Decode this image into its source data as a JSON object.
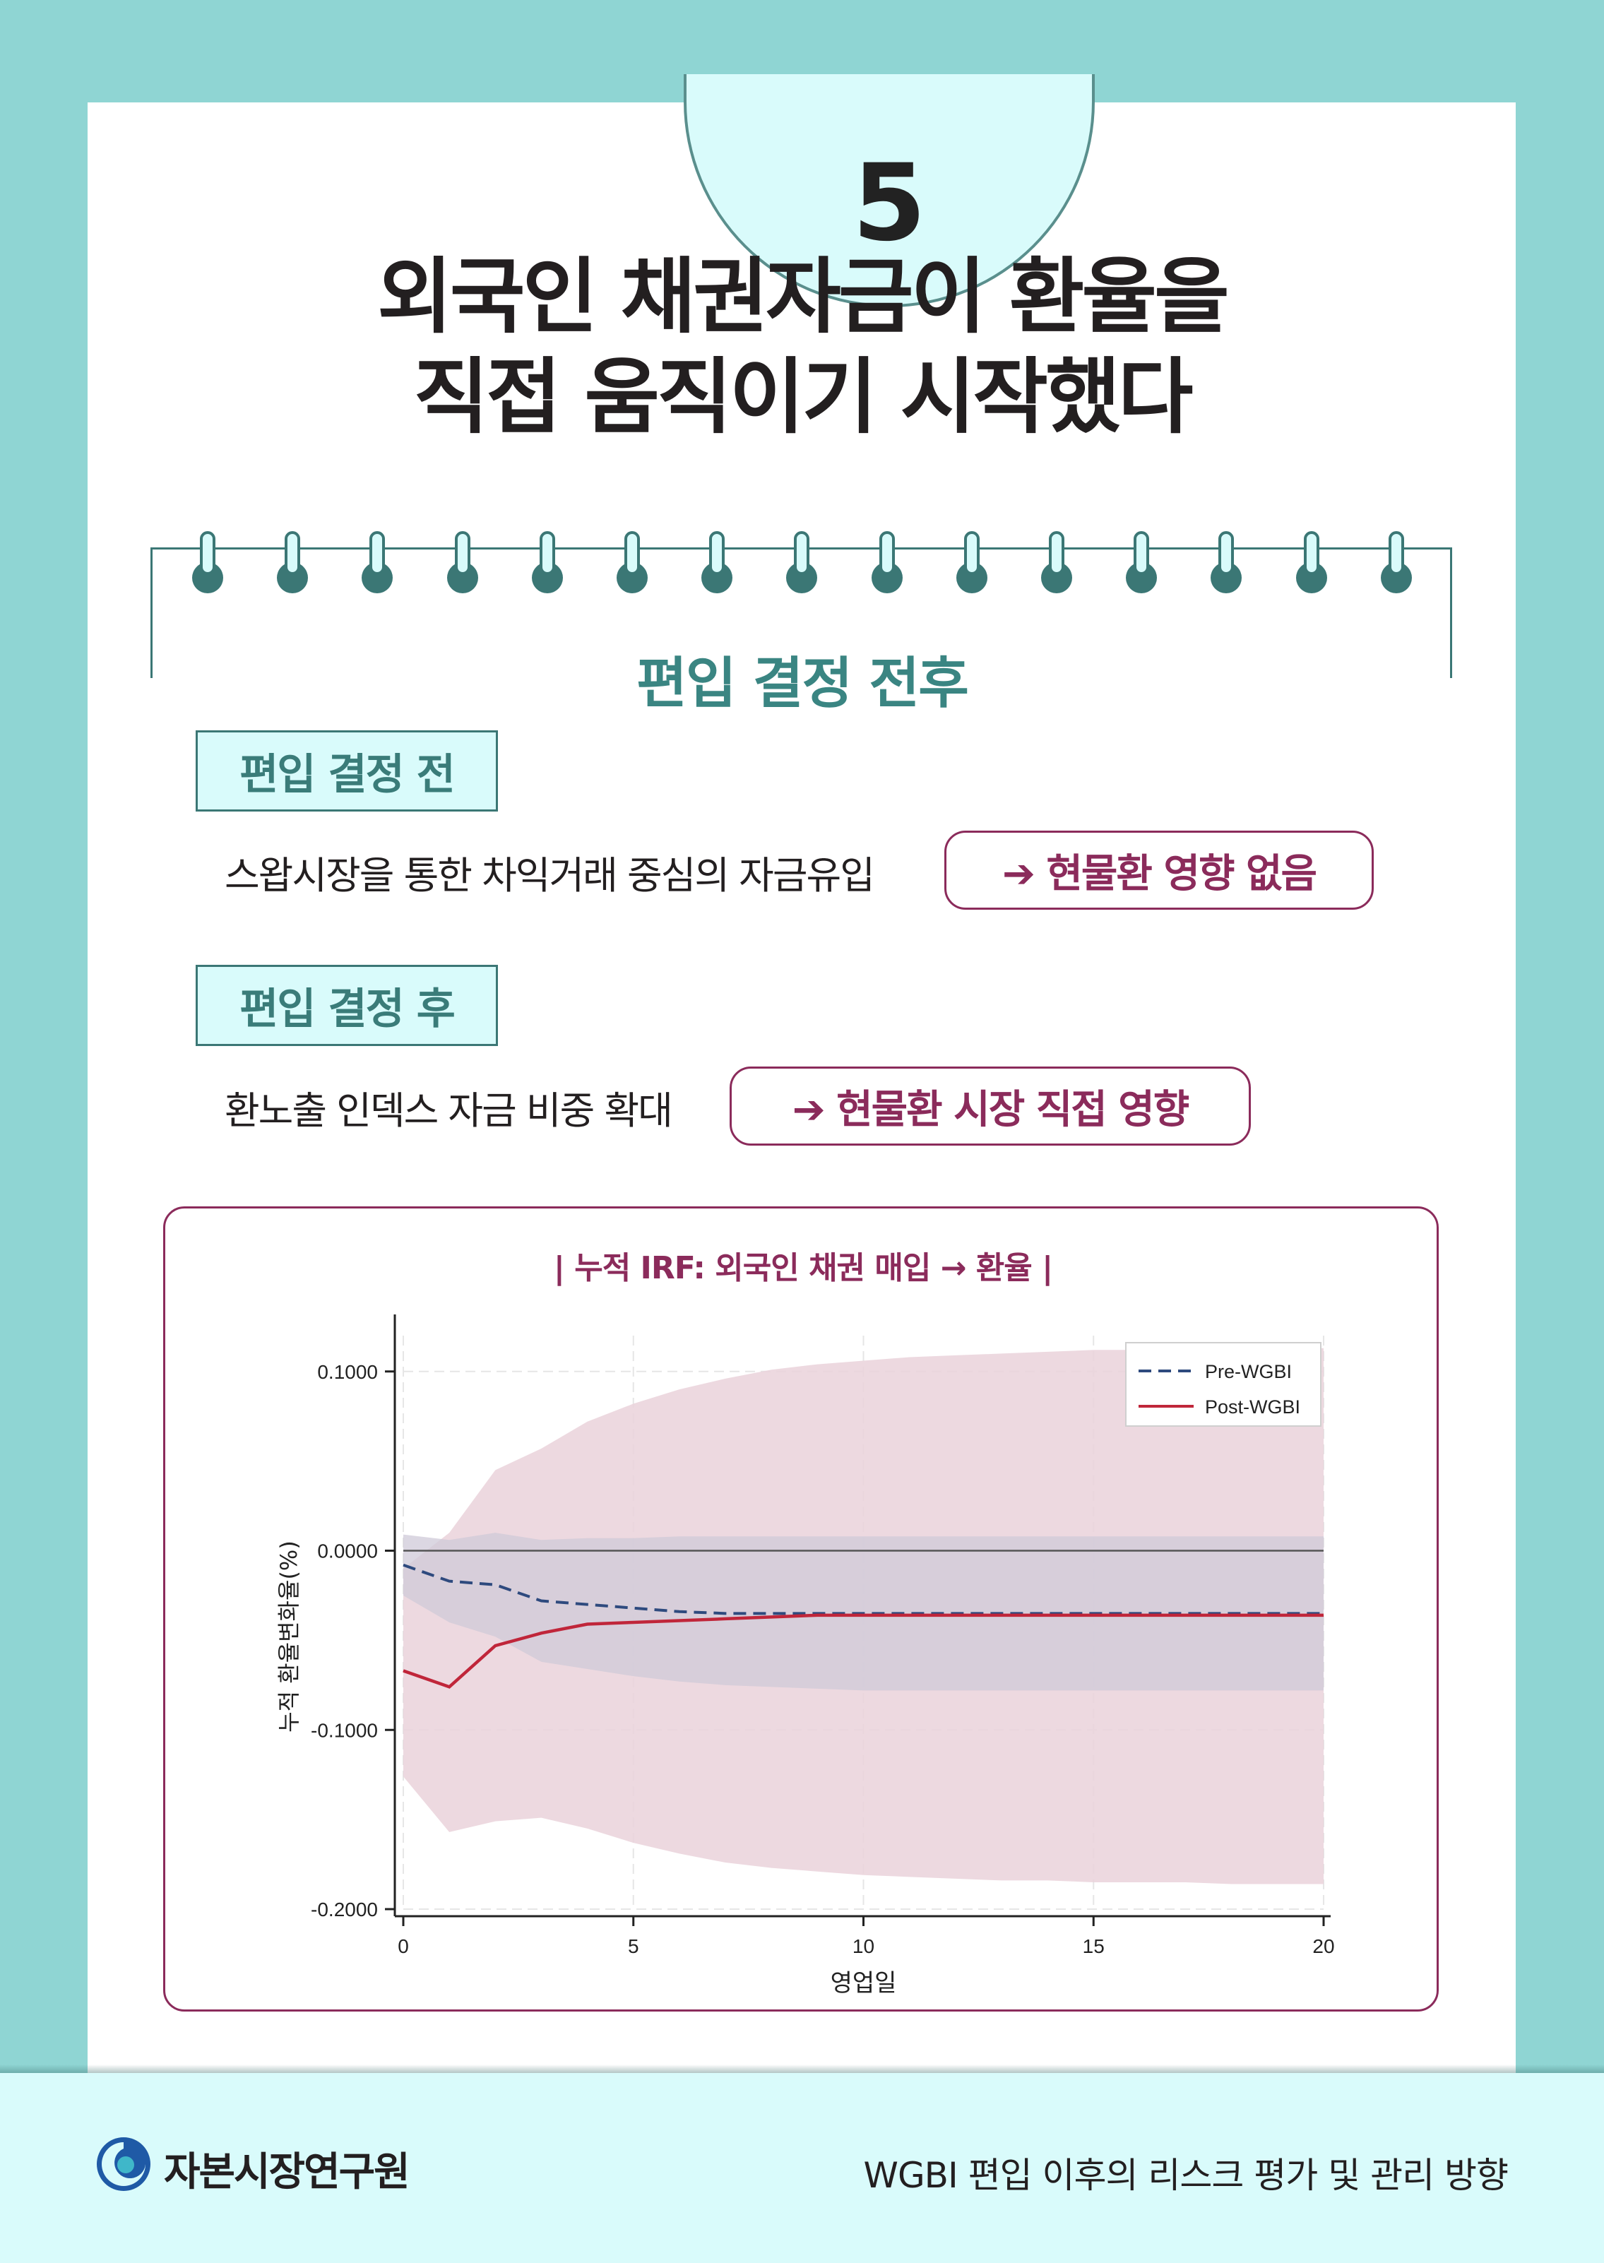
{
  "badge_number": "5",
  "title": {
    "line1": "외국인 채권자금이 환율을",
    "line2": "직접 움직이기 시작했다"
  },
  "section_title": "편입 결정 전후",
  "before": {
    "tag": "편입 결정 전",
    "description": "스왑시장을 통한 차익거래 중심의 자금유입",
    "effect": "➔ 현물환 영향 없음"
  },
  "after": {
    "tag": "편입 결정 후",
    "description": "환노출 인덱스 자금 비중 확대",
    "effect": "➔ 현물환 시장 직접 영향"
  },
  "footer": {
    "org_name": "자본시장연구원",
    "report_title": "WGBI 편입 이후의 리스크 평가 및 관리 방향"
  },
  "colors": {
    "teal_bg": "#8fd5d3",
    "teal_dark": "#3b7775",
    "accent": "#8b2b5b",
    "pre_line": "#2e4a7e",
    "post_line": "#c0263a"
  },
  "chart_data": {
    "type": "line",
    "title": "| 누적 IRF: 외국인 채권 매입 → 환율 |",
    "xlabel": "영업일",
    "ylabel": "누적 환율변화율(%)",
    "xlim": [
      0,
      20
    ],
    "ylim": [
      -0.2,
      0.12
    ],
    "x_ticks": [
      "0",
      "5",
      "10",
      "15",
      "20"
    ],
    "y_ticks": [
      "0.1000",
      "0.0000",
      "-0.1000",
      "-0.2000"
    ],
    "grid": true,
    "legend_position": "top-right",
    "x": [
      0,
      1,
      2,
      3,
      4,
      5,
      6,
      7,
      8,
      9,
      10,
      11,
      12,
      13,
      14,
      15,
      16,
      17,
      18,
      19,
      20
    ],
    "series": [
      {
        "name": "Pre-WGBI",
        "style": "dashed",
        "color": "#2e4a7e",
        "values": [
          -0.008,
          -0.017,
          -0.019,
          -0.028,
          -0.03,
          -0.032,
          -0.034,
          -0.035,
          -0.035,
          -0.035,
          -0.035,
          -0.035,
          -0.035,
          -0.035,
          -0.035,
          -0.035,
          -0.035,
          -0.035,
          -0.035,
          -0.035,
          -0.035
        ],
        "ci_upper": [
          0.009,
          0.006,
          0.01,
          0.006,
          0.007,
          0.007,
          0.008,
          0.008,
          0.008,
          0.008,
          0.008,
          0.008,
          0.008,
          0.008,
          0.008,
          0.008,
          0.008,
          0.008,
          0.008,
          0.008,
          0.008
        ],
        "ci_lower": [
          -0.025,
          -0.04,
          -0.048,
          -0.062,
          -0.066,
          -0.07,
          -0.073,
          -0.075,
          -0.076,
          -0.077,
          -0.078,
          -0.078,
          -0.078,
          -0.078,
          -0.078,
          -0.078,
          -0.078,
          -0.078,
          -0.078,
          -0.078,
          -0.078
        ],
        "band_color": "#cfc9d8"
      },
      {
        "name": "Post-WGBI",
        "style": "solid",
        "color": "#c0263a",
        "values": [
          -0.067,
          -0.076,
          -0.053,
          -0.046,
          -0.041,
          -0.04,
          -0.039,
          -0.038,
          -0.037,
          -0.036,
          -0.036,
          -0.036,
          -0.036,
          -0.036,
          -0.036,
          -0.036,
          -0.036,
          -0.036,
          -0.036,
          -0.036,
          -0.036
        ],
        "ci_upper": [
          -0.01,
          0.01,
          0.045,
          0.057,
          0.072,
          0.082,
          0.09,
          0.096,
          0.101,
          0.104,
          0.106,
          0.108,
          0.109,
          0.11,
          0.111,
          0.112,
          0.112,
          0.113,
          0.113,
          0.113,
          0.113
        ],
        "ci_lower": [
          -0.126,
          -0.157,
          -0.151,
          -0.149,
          -0.155,
          -0.163,
          -0.169,
          -0.174,
          -0.177,
          -0.179,
          -0.181,
          -0.182,
          -0.183,
          -0.184,
          -0.184,
          -0.185,
          -0.185,
          -0.185,
          -0.186,
          -0.186,
          -0.186
        ],
        "band_color": "#ead2da"
      }
    ]
  }
}
